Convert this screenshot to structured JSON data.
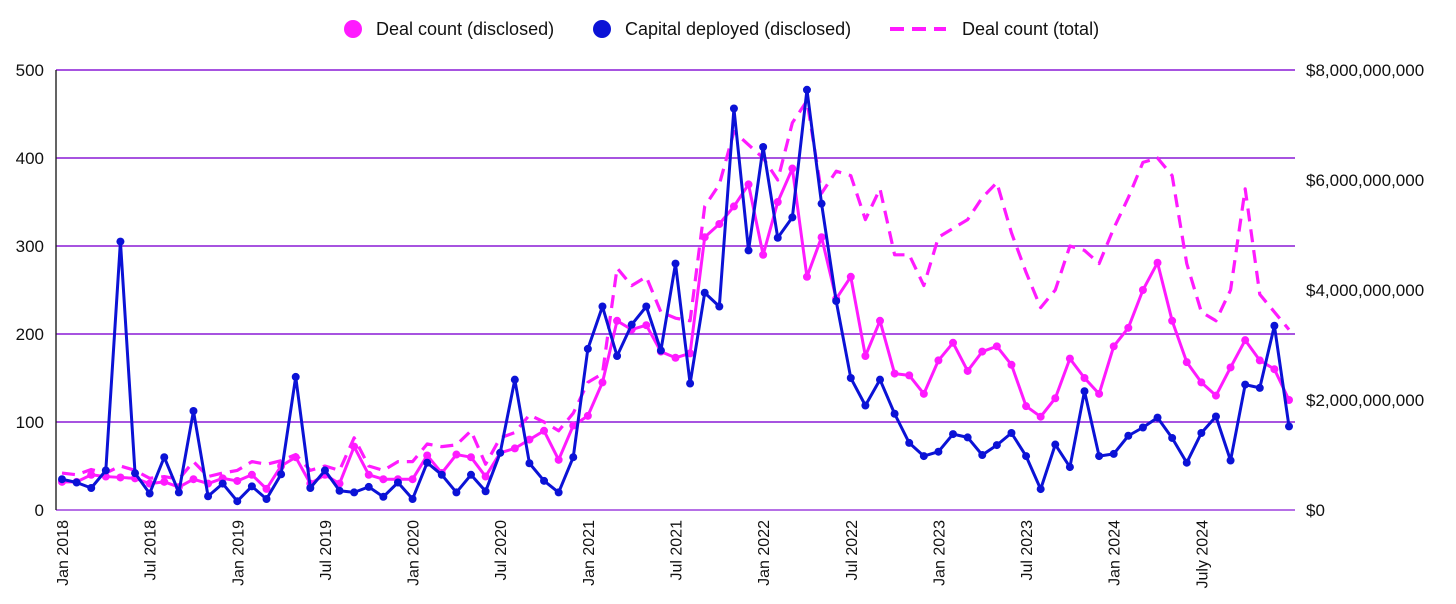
{
  "chart_data": {
    "type": "line",
    "title": "",
    "colors": {
      "deal_disclosed": "#ff1aff",
      "capital": "#0b12d6",
      "deal_total": "#ff1aff",
      "grid": "#8a1ad6"
    },
    "legend": [
      "Deal count (disclosed)",
      "Capital deployed (disclosed)",
      "Deal count (total)"
    ],
    "x_tick_labels": [
      "Jan 2018",
      "Jul 2018",
      "Jan 2019",
      "Jul 2019",
      "Jan 2020",
      "Jul 2020",
      "Jan 2021",
      "Jul 2021",
      "Jan 2022",
      "Jul 2022",
      "Jan 2023",
      "Jul 2023",
      "Jan 2024",
      "July 2024"
    ],
    "x_tick_index": [
      0,
      6,
      12,
      18,
      24,
      30,
      36,
      42,
      48,
      54,
      60,
      66,
      72,
      78
    ],
    "y_left": {
      "ticks": [
        0,
        100,
        200,
        300,
        400,
        500
      ],
      "labels": [
        "0",
        "100",
        "200",
        "300",
        "400",
        "500"
      ],
      "ylim": [
        0,
        500
      ]
    },
    "y_right": {
      "ticks": [
        0,
        2000000000,
        4000000000,
        6000000000,
        8000000000
      ],
      "labels": [
        "$0",
        "$2,000,000,000",
        "$4,000,000,000",
        "$6,000,000,000",
        "$8,000,000,000"
      ],
      "ylim": [
        0,
        8000000000
      ]
    },
    "series": [
      {
        "name": "Deal count (disclosed)",
        "axis": "left",
        "values": [
          32,
          32,
          40,
          38,
          37,
          36,
          30,
          32,
          26,
          35,
          30,
          36,
          33,
          40,
          24,
          50,
          60,
          30,
          40,
          30,
          72,
          40,
          35,
          35,
          35,
          62,
          42,
          63,
          60,
          38,
          65,
          70,
          80,
          90,
          57,
          96,
          107,
          145,
          215,
          205,
          210,
          180,
          173,
          178,
          310,
          325,
          345,
          370,
          290,
          350,
          388,
          265,
          310,
          240,
          265,
          175,
          215,
          155,
          153,
          132,
          170,
          190,
          158,
          180,
          186,
          165,
          118,
          106,
          127,
          172,
          150,
          132,
          186,
          207,
          250,
          281,
          215,
          168,
          145,
          130,
          162,
          193,
          170,
          160,
          125
        ]
      },
      {
        "name": "Capital deployed (disclosed)",
        "axis": "right",
        "values": [
          560000000,
          500000000,
          400000000,
          720000000,
          4880000000,
          670000000,
          300000000,
          960000000,
          320000000,
          1800000000,
          250000000,
          480000000,
          160000000,
          430000000,
          200000000,
          650000000,
          2420000000,
          400000000,
          720000000,
          350000000,
          320000000,
          420000000,
          240000000,
          500000000,
          200000000,
          860000000,
          640000000,
          320000000,
          640000000,
          340000000,
          1040000000,
          2370000000,
          850000000,
          530000000,
          320000000,
          960000000,
          2930000000,
          3700000000,
          2800000000,
          3370000000,
          3700000000,
          2900000000,
          4480000000,
          2300000000,
          3950000000,
          3700000000,
          7300000000,
          4720000000,
          6600000000,
          4950000000,
          5320000000,
          7640000000,
          5570000000,
          3800000000,
          2400000000,
          1900000000,
          2370000000,
          1750000000,
          1220000000,
          980000000,
          1060000000,
          1380000000,
          1320000000,
          1000000000,
          1180000000,
          1400000000,
          980000000,
          380000000,
          1190000000,
          780000000,
          2160000000,
          980000000,
          1020000000,
          1350000000,
          1500000000,
          1680000000,
          1310000000,
          860000000,
          1400000000,
          1700000000,
          900000000,
          2280000000,
          2220000000,
          3350000000,
          1520000000
        ]
      },
      {
        "name": "Deal count (total)",
        "axis": "left",
        "values": [
          42,
          40,
          46,
          42,
          50,
          45,
          36,
          38,
          35,
          55,
          38,
          42,
          45,
          55,
          52,
          56,
          63,
          45,
          50,
          45,
          82,
          50,
          45,
          55,
          55,
          75,
          72,
          74,
          90,
          52,
          82,
          88,
          108,
          100,
          90,
          110,
          145,
          155,
          275,
          255,
          265,
          225,
          218,
          215,
          345,
          370,
          430,
          415,
          400,
          375,
          440,
          465,
          360,
          385,
          380,
          330,
          365,
          290,
          290,
          255,
          310,
          320,
          330,
          355,
          372,
          315,
          270,
          230,
          250,
          300,
          295,
          280,
          320,
          355,
          395,
          400,
          380,
          280,
          225,
          215,
          250,
          365,
          245,
          225,
          205
        ]
      }
    ]
  }
}
